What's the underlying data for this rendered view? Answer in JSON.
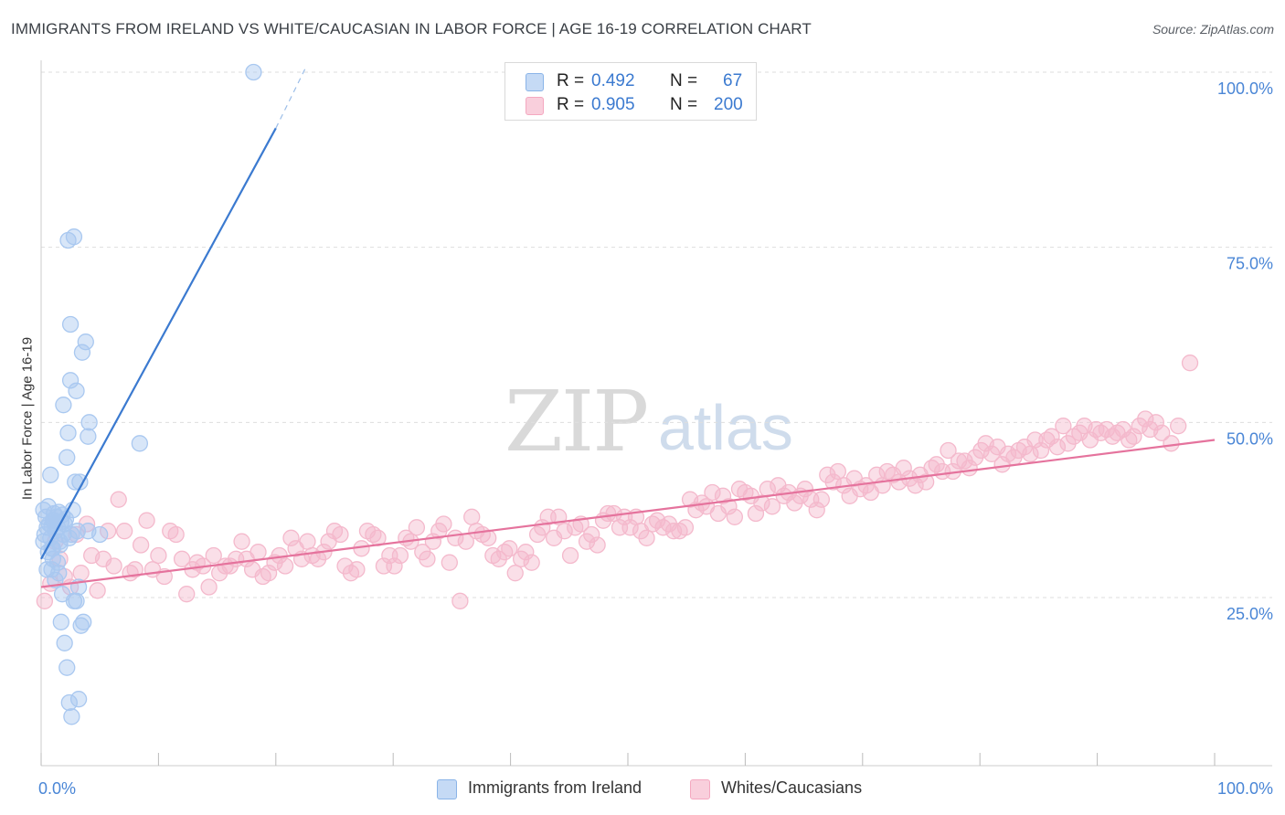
{
  "header": {
    "title": "IMMIGRANTS FROM IRELAND VS WHITE/CAUCASIAN IN LABOR FORCE | AGE 16-19 CORRELATION CHART",
    "source": "Source: ZipAtlas.com"
  },
  "watermark": {
    "zip": "ZIP",
    "atlas": "atlas"
  },
  "legend": {
    "series1": {
      "r_label": "R =",
      "r_value": "0.492",
      "n_label": "N =",
      "n_value": "67",
      "color": "#8ab4e8"
    },
    "series2": {
      "r_label": "R =",
      "r_value": "0.905",
      "n_label": "N =",
      "n_value": "200",
      "color": "#f4a8c0"
    }
  },
  "bottom_legend": {
    "series1": "Immigrants from Ireland",
    "series2": "Whites/Caucasians"
  },
  "chart_data": {
    "type": "scatter",
    "title": "IMMIGRANTS FROM IRELAND VS WHITE/CAUCASIAN IN LABOR FORCE | AGE 16-19 CORRELATION CHART",
    "xlabel": "",
    "ylabel": "In Labor Force | Age 16-19",
    "xlim": [
      0,
      100
    ],
    "ylim": [
      0,
      102
    ],
    "x_tick_labels": [
      "0.0%",
      "100.0%"
    ],
    "y_ticks": [
      25,
      50,
      75,
      100
    ],
    "y_tick_labels": [
      "25.0%",
      "50.0%",
      "75.0%",
      "100.0%"
    ],
    "series": [
      {
        "name": "Immigrants from Ireland",
        "color": "#3b7ad0",
        "fill": "#a9c8f0",
        "r": 0.492,
        "n": 67,
        "trend": {
          "x0": 0.0,
          "y0": 30.5,
          "x1": 20.0,
          "y1": 92.0,
          "dash_x1": 22.5,
          "dash_y1": 100.5
        },
        "points": [
          [
            0.2,
            37.5
          ],
          [
            0.4,
            36.5
          ],
          [
            0.5,
            35.0
          ],
          [
            0.6,
            38.0
          ],
          [
            0.7,
            35.5
          ],
          [
            0.8,
            33.5
          ],
          [
            0.9,
            32.0
          ],
          [
            1.0,
            36.0
          ],
          [
            1.1,
            37.0
          ],
          [
            1.2,
            34.5
          ],
          [
            1.3,
            36.5
          ],
          [
            1.4,
            35.0
          ],
          [
            1.5,
            37.2
          ],
          [
            1.6,
            33.0
          ],
          [
            1.7,
            35.8
          ],
          [
            1.8,
            36.8
          ],
          [
            1.9,
            34.0
          ],
          [
            2.0,
            35.5
          ],
          [
            2.1,
            36.2
          ],
          [
            0.3,
            34.0
          ],
          [
            0.6,
            31.5
          ],
          [
            0.9,
            29.0
          ],
          [
            1.0,
            32.0
          ],
          [
            0.8,
            42.5
          ],
          [
            1.2,
            27.5
          ],
          [
            1.5,
            28.5
          ],
          [
            1.7,
            21.5
          ],
          [
            1.8,
            25.5
          ],
          [
            2.0,
            18.5
          ],
          [
            2.2,
            15.0
          ],
          [
            2.4,
            10.0
          ],
          [
            2.6,
            8.0
          ],
          [
            2.8,
            24.5
          ],
          [
            3.0,
            24.5
          ],
          [
            3.2,
            10.5
          ],
          [
            3.4,
            21.0
          ],
          [
            3.6,
            21.5
          ],
          [
            1.9,
            52.5
          ],
          [
            2.3,
            48.5
          ],
          [
            2.5,
            56.0
          ],
          [
            2.2,
            45.0
          ],
          [
            3.0,
            54.5
          ],
          [
            3.2,
            26.5
          ],
          [
            2.5,
            64.0
          ],
          [
            3.8,
            61.5
          ],
          [
            3.5,
            60.0
          ],
          [
            4.0,
            48.0
          ],
          [
            4.1,
            50.0
          ],
          [
            2.3,
            76.0
          ],
          [
            2.8,
            76.5
          ],
          [
            2.9,
            41.5
          ],
          [
            3.3,
            41.5
          ],
          [
            2.7,
            37.5
          ],
          [
            4.0,
            34.5
          ],
          [
            5.0,
            34.0
          ],
          [
            8.4,
            47.0
          ],
          [
            18.1,
            100.0
          ],
          [
            1.0,
            30.5
          ],
          [
            0.5,
            29.0
          ],
          [
            1.4,
            30.0
          ],
          [
            2.6,
            34.0
          ],
          [
            0.2,
            33.0
          ],
          [
            3.1,
            34.5
          ],
          [
            1.6,
            32.5
          ],
          [
            0.9,
            35.2
          ],
          [
            2.4,
            33.5
          ],
          [
            1.1,
            36.0
          ]
        ]
      },
      {
        "name": "Whites/Caucasians",
        "color": "#e5739d",
        "fill": "#f4b9cc",
        "r": 0.905,
        "n": 200,
        "trend": {
          "x0": 0.0,
          "y0": 26.5,
          "x1": 100.0,
          "y1": 47.5
        },
        "points": [
          [
            0.3,
            24.5
          ],
          [
            0.8,
            27.0
          ],
          [
            1.2,
            33.0
          ],
          [
            1.6,
            30.5
          ],
          [
            2.0,
            28.0
          ],
          [
            2.5,
            26.5
          ],
          [
            3.0,
            34.0
          ],
          [
            3.4,
            28.5
          ],
          [
            3.9,
            35.5
          ],
          [
            4.3,
            31.0
          ],
          [
            4.8,
            26.0
          ],
          [
            5.3,
            30.5
          ],
          [
            5.7,
            34.5
          ],
          [
            6.2,
            29.5
          ],
          [
            6.6,
            39.0
          ],
          [
            7.1,
            34.5
          ],
          [
            7.6,
            28.5
          ],
          [
            8.0,
            29.0
          ],
          [
            8.5,
            32.5
          ],
          [
            9.0,
            36.0
          ],
          [
            9.5,
            29.0
          ],
          [
            10.0,
            31.0
          ],
          [
            10.5,
            28.0
          ],
          [
            11.0,
            34.5
          ],
          [
            11.5,
            34.0
          ],
          [
            12.0,
            30.5
          ],
          [
            12.4,
            25.5
          ],
          [
            12.9,
            29.0
          ],
          [
            13.3,
            30.0
          ],
          [
            13.8,
            29.5
          ],
          [
            14.3,
            26.5
          ],
          [
            14.7,
            31.0
          ],
          [
            15.2,
            28.5
          ],
          [
            15.7,
            29.5
          ],
          [
            16.1,
            29.5
          ],
          [
            16.6,
            30.5
          ],
          [
            17.1,
            33.0
          ],
          [
            17.5,
            30.5
          ],
          [
            18.0,
            29.0
          ],
          [
            18.5,
            31.5
          ],
          [
            18.9,
            28.0
          ],
          [
            19.4,
            28.5
          ],
          [
            19.9,
            30.0
          ],
          [
            20.3,
            31.0
          ],
          [
            20.8,
            29.5
          ],
          [
            21.3,
            33.5
          ],
          [
            21.7,
            32.0
          ],
          [
            22.2,
            30.5
          ],
          [
            22.7,
            33.0
          ],
          [
            23.1,
            31.0
          ],
          [
            23.6,
            30.5
          ],
          [
            24.1,
            31.5
          ],
          [
            24.5,
            33.0
          ],
          [
            25.0,
            34.5
          ],
          [
            25.5,
            34.0
          ],
          [
            25.9,
            29.5
          ],
          [
            26.4,
            28.5
          ],
          [
            26.9,
            29.0
          ],
          [
            27.3,
            32.0
          ],
          [
            27.8,
            34.5
          ],
          [
            28.3,
            34.0
          ],
          [
            28.7,
            33.5
          ],
          [
            29.2,
            29.5
          ],
          [
            29.7,
            31.0
          ],
          [
            30.1,
            29.5
          ],
          [
            30.6,
            31.0
          ],
          [
            31.1,
            33.5
          ],
          [
            31.5,
            33.0
          ],
          [
            32.0,
            35.0
          ],
          [
            32.5,
            31.5
          ],
          [
            32.9,
            30.5
          ],
          [
            33.4,
            33.0
          ],
          [
            33.9,
            34.5
          ],
          [
            34.3,
            35.5
          ],
          [
            34.8,
            30.0
          ],
          [
            35.3,
            33.5
          ],
          [
            35.7,
            24.5
          ],
          [
            36.2,
            33.0
          ],
          [
            36.7,
            36.5
          ],
          [
            37.1,
            34.5
          ],
          [
            37.6,
            34.0
          ],
          [
            38.1,
            33.5
          ],
          [
            38.5,
            31.0
          ],
          [
            39.0,
            30.5
          ],
          [
            39.5,
            31.5
          ],
          [
            39.9,
            32.0
          ],
          [
            40.4,
            28.5
          ],
          [
            40.9,
            30.5
          ],
          [
            41.3,
            31.5
          ],
          [
            41.8,
            30.0
          ],
          [
            42.3,
            34.0
          ],
          [
            42.7,
            35.0
          ],
          [
            43.2,
            36.5
          ],
          [
            43.7,
            33.5
          ],
          [
            44.1,
            36.5
          ],
          [
            44.6,
            34.5
          ],
          [
            45.1,
            31.0
          ],
          [
            45.5,
            35.0
          ],
          [
            46.0,
            35.5
          ],
          [
            46.5,
            33.0
          ],
          [
            46.9,
            34.0
          ],
          [
            47.4,
            32.5
          ],
          [
            47.9,
            36.0
          ],
          [
            48.3,
            37.0
          ],
          [
            48.8,
            37.0
          ],
          [
            49.3,
            35.0
          ],
          [
            49.7,
            36.5
          ],
          [
            50.2,
            35.0
          ],
          [
            50.7,
            36.5
          ],
          [
            51.1,
            34.5
          ],
          [
            51.6,
            33.5
          ],
          [
            52.1,
            35.5
          ],
          [
            52.5,
            36.0
          ],
          [
            53.0,
            35.0
          ],
          [
            53.5,
            35.5
          ],
          [
            53.9,
            34.5
          ],
          [
            54.4,
            34.5
          ],
          [
            54.9,
            35.0
          ],
          [
            55.3,
            39.0
          ],
          [
            55.8,
            37.5
          ],
          [
            56.3,
            38.5
          ],
          [
            56.7,
            38.0
          ],
          [
            57.2,
            40.0
          ],
          [
            57.7,
            37.0
          ],
          [
            58.1,
            39.5
          ],
          [
            58.6,
            38.0
          ],
          [
            59.1,
            36.5
          ],
          [
            59.5,
            40.5
          ],
          [
            60.0,
            40.0
          ],
          [
            60.5,
            39.5
          ],
          [
            60.9,
            37.0
          ],
          [
            61.4,
            38.5
          ],
          [
            61.9,
            40.5
          ],
          [
            62.3,
            38.0
          ],
          [
            62.8,
            41.0
          ],
          [
            63.3,
            39.5
          ],
          [
            63.7,
            40.0
          ],
          [
            64.2,
            38.5
          ],
          [
            64.7,
            39.5
          ],
          [
            65.1,
            40.5
          ],
          [
            65.6,
            39.0
          ],
          [
            66.1,
            37.5
          ],
          [
            66.5,
            39.0
          ],
          [
            67.0,
            42.5
          ],
          [
            67.5,
            41.5
          ],
          [
            67.9,
            43.0
          ],
          [
            68.4,
            41.0
          ],
          [
            68.9,
            39.5
          ],
          [
            69.3,
            42.0
          ],
          [
            69.8,
            40.5
          ],
          [
            70.3,
            41.0
          ],
          [
            70.7,
            40.0
          ],
          [
            71.2,
            42.5
          ],
          [
            71.7,
            41.0
          ],
          [
            72.1,
            43.0
          ],
          [
            72.6,
            42.5
          ],
          [
            73.1,
            41.5
          ],
          [
            73.5,
            43.5
          ],
          [
            74.0,
            42.0
          ],
          [
            74.5,
            41.0
          ],
          [
            74.9,
            42.5
          ],
          [
            75.4,
            41.5
          ],
          [
            75.9,
            43.5
          ],
          [
            76.3,
            44.0
          ],
          [
            76.8,
            43.0
          ],
          [
            77.3,
            46.0
          ],
          [
            77.7,
            43.0
          ],
          [
            78.2,
            44.5
          ],
          [
            78.7,
            44.5
          ],
          [
            79.1,
            43.5
          ],
          [
            79.6,
            45.0
          ],
          [
            80.1,
            46.0
          ],
          [
            80.5,
            47.0
          ],
          [
            81.0,
            45.5
          ],
          [
            81.5,
            46.5
          ],
          [
            81.9,
            44.0
          ],
          [
            82.4,
            45.5
          ],
          [
            82.9,
            45.0
          ],
          [
            83.3,
            46.0
          ],
          [
            83.8,
            46.5
          ],
          [
            84.3,
            45.5
          ],
          [
            84.7,
            47.5
          ],
          [
            85.2,
            46.0
          ],
          [
            85.7,
            47.5
          ],
          [
            86.1,
            48.0
          ],
          [
            86.6,
            46.5
          ],
          [
            87.1,
            49.5
          ],
          [
            87.5,
            47.0
          ],
          [
            88.0,
            48.0
          ],
          [
            88.5,
            48.5
          ],
          [
            88.9,
            49.5
          ],
          [
            89.4,
            47.5
          ],
          [
            89.9,
            49.0
          ],
          [
            90.3,
            48.5
          ],
          [
            90.8,
            49.0
          ],
          [
            91.3,
            48.0
          ],
          [
            91.7,
            48.5
          ],
          [
            92.2,
            49.0
          ],
          [
            92.7,
            47.5
          ],
          [
            93.1,
            48.0
          ],
          [
            93.6,
            49.5
          ],
          [
            94.1,
            50.5
          ],
          [
            94.5,
            49.0
          ],
          [
            95.0,
            50.0
          ],
          [
            95.5,
            48.5
          ],
          [
            96.3,
            47.0
          ],
          [
            96.9,
            49.5
          ],
          [
            97.9,
            58.5
          ]
        ]
      }
    ]
  }
}
